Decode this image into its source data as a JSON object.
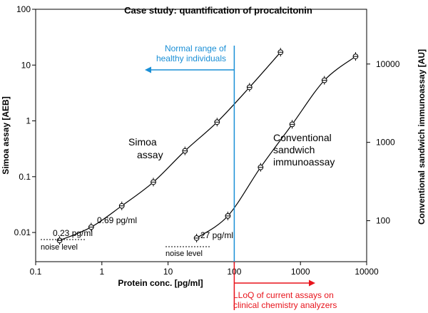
{
  "chart_data": {
    "type": "scatter",
    "title": "Case study: quantification of procalcitonin",
    "xlabel": "Protein conc. [pg/ml]",
    "ylabel_left": "Simoa assay [AEB]",
    "ylabel_right": "Conventional sandwich immunoassay [AU]",
    "x_scale": "log",
    "y_scale": "log",
    "xlim": [
      0.1,
      10000
    ],
    "ylim_left": [
      0.003,
      100
    ],
    "ylim_right": [
      30,
      50000
    ],
    "x_ticks": [
      0.1,
      1,
      10,
      100,
      1000,
      10000
    ],
    "x_tick_labels": [
      "0.1",
      "1",
      "10",
      "100",
      "1000",
      "10000"
    ],
    "y_left_ticks": [
      0.01,
      0.1,
      1,
      10,
      100
    ],
    "y_left_tick_labels": [
      "0.01",
      "0.1",
      "1",
      "10",
      "100"
    ],
    "y_right_ticks": [
      100,
      1000,
      10000
    ],
    "y_right_tick_labels": [
      "100",
      "1000",
      "10000"
    ],
    "grid": false,
    "series": [
      {
        "name": "Simoa assay",
        "axis": "left",
        "color": "#000000",
        "x": [
          0.23,
          0.69,
          2.0,
          6.0,
          18.0,
          55.0,
          170.0,
          500.0
        ],
        "y": [
          0.0072,
          0.0125,
          0.03,
          0.08,
          0.29,
          0.95,
          4.0,
          17.0
        ]
      },
      {
        "name": "Conventional sandwich immunoassay",
        "axis": "right",
        "color": "#000000",
        "x": [
          27.0,
          80.0,
          250.0,
          750.0,
          2300.0,
          6800.0
        ],
        "y": [
          60,
          115,
          480,
          1700,
          6200,
          12500
        ]
      }
    ],
    "series_labels": {
      "simoa": [
        "Simoa",
        "assay"
      ],
      "conventional": [
        "Conventional",
        "sandwich",
        "immunoassay"
      ]
    },
    "annotations": {
      "lod_simoa": "0.69 pg/ml",
      "noise_simoa": "0.23 pg/ml",
      "noise_label_left": "noise level",
      "lod_conventional": "27 pg/ml",
      "noise_label_right": "noise level",
      "normal_range": [
        "Normal range of",
        "healthy individuals"
      ],
      "normal_range_x": 100,
      "normal_range_color": "#1a8fd6",
      "lloq": [
        "LLoQ of current assays on",
        "clinical chemistry analyzers"
      ],
      "lloq_color": "#e8141c"
    }
  }
}
